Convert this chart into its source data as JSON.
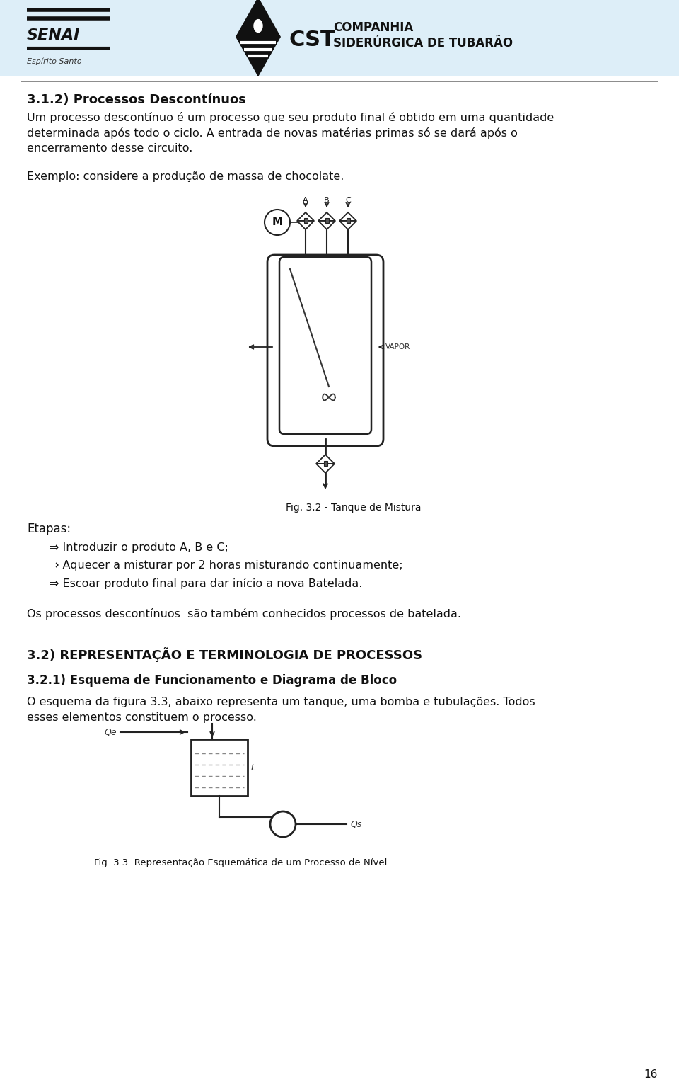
{
  "page_bg": "#ffffff",
  "header_bg": "#ddeef8",
  "title_section": "3.1.2) Processos Descontínuos",
  "para1_lines": [
    "Um processo descontínuo é um processo que seu produto final é obtido em uma quantidade",
    "determinada após todo o ciclo. A entrada de novas matérias primas só se dará após o",
    "encerramento desse circuito."
  ],
  "para2": "Exemplo: considere a produção de massa de chocolate.",
  "fig_caption": "Fig. 3.2 - Tanque de Mistura",
  "etapas_title": "Etapas:",
  "etapas_items": [
    "Introduzir o produto A, B e C;",
    "Aquecer a misturar por 2 horas misturando continuamente;",
    "Escoar produto final para dar início a nova Batelada."
  ],
  "para3": "Os processos descontínuos  são também conhecidos processos de batelada.",
  "section2_title": "3.2) REPRESENTAÇÃO E TERMINOLOGIA DE PROCESSOS",
  "section21_title": "3.2.1) Esquema de Funcionamento e Diagrama de Bloco",
  "para4_lines": [
    "O esquema da figura 3.3, abaixo representa um tanque, uma bomba e tubulações. Todos",
    "esses elementos constituem o processo."
  ],
  "fig2_caption": "Fig. 3.3  Representação Esquemática de um Processo de Nível",
  "page_num": "16",
  "senai_text": "SENAI",
  "espirito_santo": "Espírito Santo",
  "cst_company": "COMPANHIA",
  "cst_subtitle": "SIDERÚRGICA DE TUBARÃO",
  "vapor_label": "VAPOR",
  "abc_labels": [
    "A",
    "B",
    "C"
  ],
  "motor_label": "M",
  "qe_label": "Qe",
  "qs_label": "Qs",
  "l_label": "L"
}
